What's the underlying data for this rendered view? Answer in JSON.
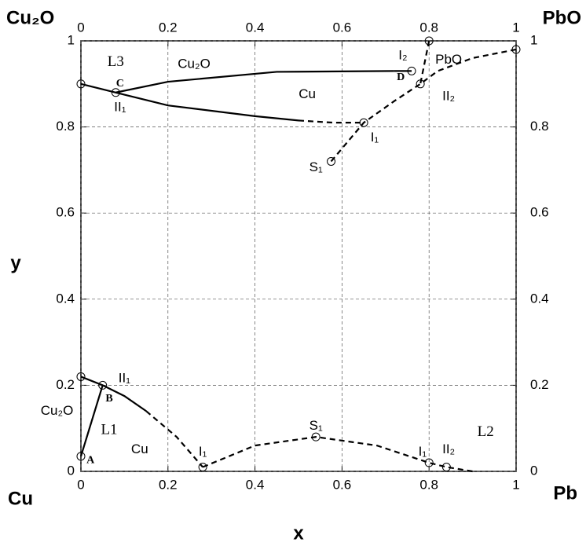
{
  "chart_data": {
    "type": "line",
    "corner_labels": {
      "top_left": "Cu₂O",
      "top_right": "PbO",
      "bottom_left": "Cu",
      "bottom_right": "Pb"
    },
    "x_label": "x",
    "y_label": "y",
    "xlim": [
      0,
      1
    ],
    "ylim": [
      0,
      1
    ],
    "xticks": [
      0,
      0.2,
      0.4,
      0.6,
      0.8,
      1
    ],
    "yticks": [
      0,
      0.2,
      0.4,
      0.6,
      0.8,
      1
    ],
    "grid": true,
    "color": "#000000",
    "series": [
      {
        "style": "solid",
        "x": [
          0.08,
          0.2,
          0.45,
          0.72
        ],
        "y": [
          0.88,
          0.905,
          0.928,
          0.93
        ]
      },
      {
        "style": "solid",
        "x": [
          0,
          0.08,
          0.2,
          0.4,
          0.5
        ],
        "y": [
          0.9,
          0.88,
          0.85,
          0.825,
          0.815
        ]
      },
      {
        "style": "dashed",
        "x": [
          0.5,
          0.58,
          0.65
        ],
        "y": [
          0.815,
          0.81,
          0.81
        ]
      },
      {
        "style": "dashed",
        "x": [
          0.575,
          0.65,
          0.72,
          0.78
        ],
        "y": [
          0.72,
          0.81,
          0.86,
          0.9
        ]
      },
      {
        "style": "dashed",
        "x": [
          1,
          0.9,
          0.82,
          0.78
        ],
        "y": [
          0.98,
          0.96,
          0.93,
          0.9
        ]
      },
      {
        "style": "dashed",
        "x": [
          0.8,
          0.79,
          0.78
        ],
        "y": [
          1,
          0.95,
          0.9
        ]
      },
      {
        "style": "solid",
        "x": [
          0.72,
          0.76
        ],
        "y": [
          0.93,
          0.93
        ]
      },
      {
        "style": "solid",
        "x": [
          0,
          0.05
        ],
        "y": [
          0.035,
          0.2
        ]
      },
      {
        "style": "solid",
        "x": [
          0,
          0.05,
          0.1,
          0.15
        ],
        "y": [
          0.22,
          0.2,
          0.175,
          0.14
        ]
      },
      {
        "style": "dashed",
        "x": [
          0.15,
          0.22,
          0.28
        ],
        "y": [
          0.14,
          0.08,
          0.01
        ]
      },
      {
        "style": "dashed",
        "x": [
          0.28,
          0.4,
          0.54,
          0.68,
          0.8,
          0.84,
          0.9
        ],
        "y": [
          0.01,
          0.06,
          0.08,
          0.06,
          0.02,
          0.01,
          0
        ]
      }
    ],
    "points": {
      "x": [
        0.08,
        0,
        0.65,
        0.575,
        0.76,
        0.8,
        0.78,
        1,
        0,
        0,
        0.05,
        0.28,
        0.54,
        0.8,
        0.84
      ],
      "y": [
        0.88,
        0.9,
        0.81,
        0.72,
        0.93,
        1,
        0.9,
        0.98,
        0.035,
        0.22,
        0.2,
        0.01,
        0.08,
        0.02,
        0.01
      ]
    },
    "annotations": [
      {
        "text": "L3",
        "x": 0.08,
        "y": 0.95,
        "color": "#2222cc"
      },
      {
        "text": "C",
        "x": 0.09,
        "y": 0.9,
        "color": "#dd0000"
      },
      {
        "text": "Cu₂O",
        "x": 0.26,
        "y": 0.945,
        "color": "#000000"
      },
      {
        "text": "Cu",
        "x": 0.52,
        "y": 0.875,
        "color": "#000000"
      },
      {
        "text": "II₁",
        "x": 0.09,
        "y": 0.845,
        "color": "#000000"
      },
      {
        "text": "D",
        "x": 0.735,
        "y": 0.915,
        "color": "#dd0000"
      },
      {
        "text": "I₂",
        "x": 0.74,
        "y": 0.965,
        "color": "#000000"
      },
      {
        "text": "PbO",
        "x": 0.845,
        "y": 0.955,
        "color": "#000000"
      },
      {
        "text": "II₂",
        "x": 0.845,
        "y": 0.87,
        "color": "#000000"
      },
      {
        "text": "I₁",
        "x": 0.675,
        "y": 0.775,
        "color": "#000000"
      },
      {
        "text": "S₁",
        "x": 0.54,
        "y": 0.705,
        "color": "#000000"
      },
      {
        "text": "II₁",
        "x": 0.1,
        "y": 0.215,
        "color": "#000000"
      },
      {
        "text": "Cu₂O",
        "x": -0.055,
        "y": 0.14,
        "color": "#000000"
      },
      {
        "text": "B",
        "x": 0.065,
        "y": 0.168,
        "color": "#dd0000"
      },
      {
        "text": "L1",
        "x": 0.065,
        "y": 0.095,
        "color": "#2222cc"
      },
      {
        "text": "Cu",
        "x": 0.135,
        "y": 0.05,
        "color": "#000000"
      },
      {
        "text": "A",
        "x": 0.022,
        "y": 0.025,
        "color": "#dd0000"
      },
      {
        "text": "I₁",
        "x": 0.28,
        "y": 0.045,
        "color": "#000000"
      },
      {
        "text": "S₁",
        "x": 0.54,
        "y": 0.105,
        "color": "#000000"
      },
      {
        "text": "I₁",
        "x": 0.785,
        "y": 0.045,
        "color": "#000000"
      },
      {
        "text": "II₂",
        "x": 0.845,
        "y": 0.05,
        "color": "#000000"
      },
      {
        "text": "L2",
        "x": 0.93,
        "y": 0.09,
        "color": "#2222cc"
      }
    ]
  }
}
